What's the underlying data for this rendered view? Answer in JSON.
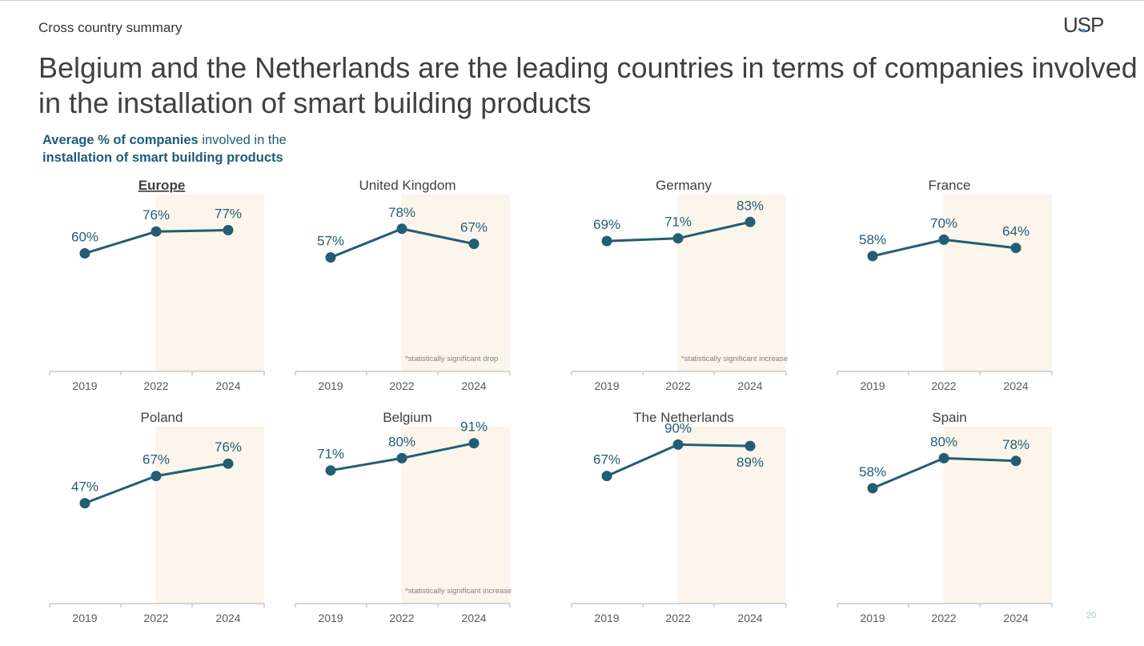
{
  "header": {
    "section": "Cross country summary",
    "logo": "USP",
    "title": "Belgium and the Netherlands are the leading countries in terms of companies involved in the installation of smart building products",
    "subtitle_bold_1": "Average % of companies",
    "subtitle_normal": "involved in the",
    "subtitle_bold_2": "installation of smart building products",
    "page_number": "20"
  },
  "colors": {
    "line": "#235d74",
    "shade": "#fcf5ec",
    "axis": "#bfbfbf",
    "label": "#235d74",
    "tick": "#595959"
  },
  "chart_data": [
    {
      "type": "line",
      "title": "Europe",
      "title_underlined": true,
      "categories": [
        "2019",
        "2022",
        "2024"
      ],
      "values": [
        60,
        76,
        77
      ],
      "labels": [
        "60%",
        "76%",
        "77%"
      ],
      "note": ""
    },
    {
      "type": "line",
      "title": "United Kingdom",
      "categories": [
        "2019",
        "2022",
        "2024"
      ],
      "values": [
        57,
        78,
        67
      ],
      "labels": [
        "57%",
        "78%",
        "67%"
      ],
      "note": "*statistically significant drop"
    },
    {
      "type": "line",
      "title": "Germany",
      "categories": [
        "2019",
        "2022",
        "2024"
      ],
      "values": [
        69,
        71,
        83
      ],
      "labels": [
        "69%",
        "71%",
        "83%"
      ],
      "note": "*statistically significant increase"
    },
    {
      "type": "line",
      "title": "France",
      "categories": [
        "2019",
        "2022",
        "2024"
      ],
      "values": [
        58,
        70,
        64
      ],
      "labels": [
        "58%",
        "70%",
        "64%"
      ],
      "note": ""
    },
    {
      "type": "line",
      "title": "Poland",
      "categories": [
        "2019",
        "2022",
        "2024"
      ],
      "values": [
        47,
        67,
        76
      ],
      "labels": [
        "47%",
        "67%",
        "76%"
      ],
      "note": ""
    },
    {
      "type": "line",
      "title": "Belgium",
      "categories": [
        "2019",
        "2022",
        "2024"
      ],
      "values": [
        71,
        80,
        91
      ],
      "labels": [
        "71%",
        "80%",
        "91%"
      ],
      "note": "*statistically significant increase"
    },
    {
      "type": "line",
      "title": "The Netherlands",
      "categories": [
        "2019",
        "2022",
        "2024"
      ],
      "values": [
        67,
        90,
        89
      ],
      "labels": [
        "67%",
        "90%",
        "89%"
      ],
      "note": ""
    },
    {
      "type": "line",
      "title": "Spain",
      "categories": [
        "2019",
        "2022",
        "2024"
      ],
      "values": [
        58,
        80,
        78
      ],
      "labels": [
        "58%",
        "80%",
        "78%"
      ],
      "note": ""
    }
  ]
}
